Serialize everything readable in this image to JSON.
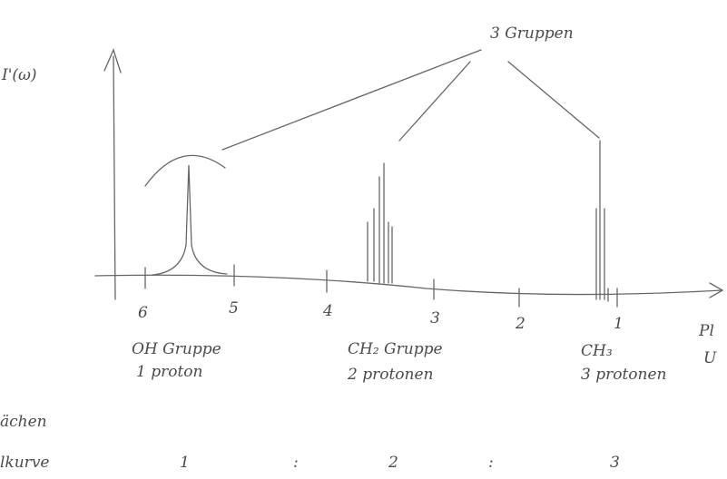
{
  "y_axis_label": "I'(ω)",
  "annotation": "3 Gruppen",
  "x_axis": {
    "ticks": [
      "6",
      "5",
      "4",
      "3",
      "2",
      "1"
    ],
    "label": "Pl",
    "label_2": "U"
  },
  "groups": [
    {
      "name": "OH Gruppe",
      "protons": "1 proton"
    },
    {
      "name": "CH₂ Gruppe",
      "protons": "2 protonen"
    },
    {
      "name": "CH₃",
      "protons": "3 protonen"
    }
  ],
  "ratio": {
    "row_label_1": "ächen",
    "row_label_2": "lkurve",
    "items": [
      "1",
      ":",
      "2",
      ":",
      "3"
    ]
  }
}
